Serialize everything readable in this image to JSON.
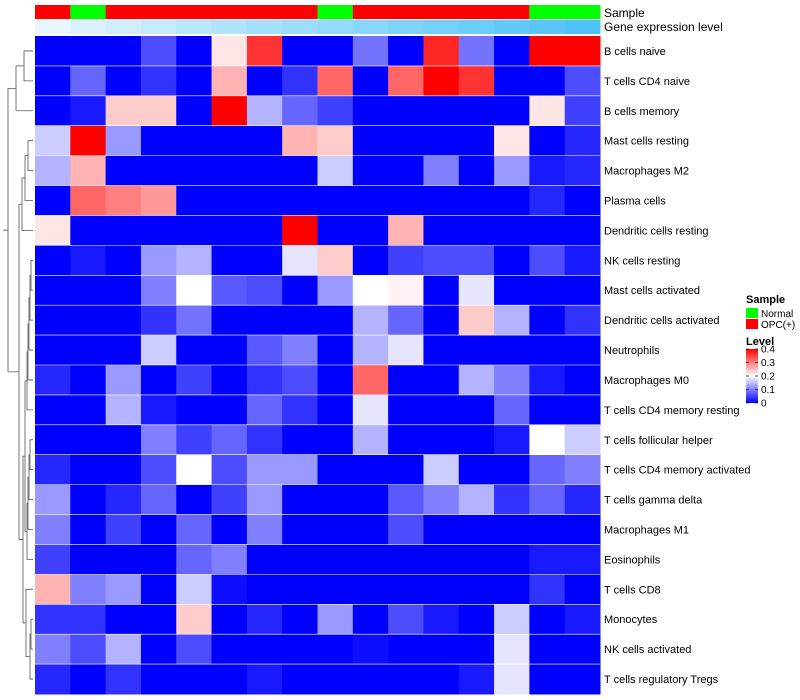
{
  "chart_data": {
    "type": "heatmap",
    "annotation_labels": {
      "sample": "Sample",
      "gene_expression": "Gene expression level"
    },
    "sample_groups": [
      "OPC(+)",
      "Normal",
      "OPC(+)",
      "OPC(+)",
      "OPC(+)",
      "OPC(+)",
      "OPC(+)",
      "OPC(+)",
      "Normal",
      "OPC(+)",
      "OPC(+)",
      "OPC(+)",
      "OPC(+)",
      "OPC(+)",
      "Normal",
      "Normal"
    ],
    "gene_expression_level": [
      0.05,
      0.12,
      0.18,
      0.24,
      0.3,
      0.35,
      0.4,
      0.45,
      0.5,
      0.55,
      0.6,
      0.65,
      0.7,
      0.75,
      0.8,
      0.85
    ],
    "rows": [
      "B cells naive",
      "T cells CD4 naive",
      "B cells memory",
      "Mast cells resting",
      "Macrophages M2",
      "Plasma cells",
      "Dendritic cells resting",
      "NK cells resting",
      "Mast cells activated",
      "Dendritic cells activated",
      "Neutrophils",
      "Macrophages M0",
      "T cells CD4 memory resting",
      "T cells follicular helper",
      "T cells CD4 memory activated",
      "T cells gamma delta",
      "Macrophages M1",
      "Eosinophils",
      "T cells CD8",
      "Monocytes",
      "NK cells activated",
      "T cells regulatory  Tregs"
    ],
    "values": [
      [
        0.0,
        0.0,
        0.0,
        0.06,
        0.0,
        0.22,
        0.36,
        0.0,
        0.0,
        0.09,
        0.0,
        0.37,
        0.09,
        0.0,
        0.4,
        0.4
      ],
      [
        0.0,
        0.08,
        0.0,
        0.04,
        0.0,
        0.26,
        0.0,
        0.04,
        0.32,
        0.0,
        0.32,
        0.4,
        0.36,
        0.0,
        0.0,
        0.06
      ],
      [
        0.0,
        0.02,
        0.24,
        0.24,
        0.0,
        0.4,
        0.14,
        0.08,
        0.05,
        0.0,
        0.0,
        0.0,
        0.0,
        0.0,
        0.22,
        0.05
      ],
      [
        0.16,
        0.4,
        0.12,
        0.0,
        0.0,
        0.0,
        0.0,
        0.26,
        0.24,
        0.0,
        0.0,
        0.0,
        0.0,
        0.22,
        0.0,
        0.03
      ],
      [
        0.14,
        0.26,
        0.0,
        0.0,
        0.0,
        0.0,
        0.0,
        0.0,
        0.16,
        0.0,
        0.0,
        0.1,
        0.0,
        0.12,
        0.02,
        0.03
      ],
      [
        0.0,
        0.32,
        0.3,
        0.28,
        0.0,
        0.0,
        0.0,
        0.0,
        0.0,
        0.0,
        0.0,
        0.0,
        0.0,
        0.0,
        0.03,
        0.0
      ],
      [
        0.22,
        0.0,
        0.0,
        0.0,
        0.0,
        0.0,
        0.0,
        0.4,
        0.0,
        0.0,
        0.26,
        0.0,
        0.0,
        0.0,
        0.0,
        0.0
      ],
      [
        0.0,
        0.02,
        0.0,
        0.12,
        0.14,
        0.0,
        0.0,
        0.18,
        0.24,
        0.0,
        0.05,
        0.06,
        0.06,
        0.0,
        0.06,
        0.02
      ],
      [
        0.0,
        0.0,
        0.0,
        0.1,
        0.2,
        0.07,
        0.06,
        0.0,
        0.12,
        0.2,
        0.21,
        0.0,
        0.18,
        0.0,
        0.0,
        0.0
      ],
      [
        0.0,
        0.0,
        0.0,
        0.04,
        0.09,
        0.0,
        0.0,
        0.0,
        0.0,
        0.14,
        0.08,
        0.0,
        0.24,
        0.14,
        0.0,
        0.04
      ],
      [
        0.0,
        0.0,
        0.0,
        0.16,
        0.0,
        0.0,
        0.07,
        0.1,
        0.0,
        0.14,
        0.18,
        0.0,
        0.0,
        0.0,
        0.0,
        0.0
      ],
      [
        0.03,
        0.0,
        0.12,
        0.0,
        0.05,
        0.0,
        0.04,
        0.06,
        0.0,
        0.32,
        0.0,
        0.0,
        0.14,
        0.1,
        0.02,
        0.0
      ],
      [
        0.0,
        0.0,
        0.14,
        0.02,
        0.0,
        0.0,
        0.08,
        0.04,
        0.0,
        0.18,
        0.0,
        0.0,
        0.0,
        0.08,
        0.0,
        0.0
      ],
      [
        0.0,
        0.0,
        0.0,
        0.1,
        0.05,
        0.08,
        0.04,
        0.0,
        0.0,
        0.14,
        0.0,
        0.0,
        0.0,
        0.02,
        0.2,
        0.16
      ],
      [
        0.03,
        0.0,
        0.0,
        0.06,
        0.2,
        0.06,
        0.12,
        0.12,
        0.0,
        0.0,
        0.0,
        0.16,
        0.0,
        0.0,
        0.08,
        0.1
      ],
      [
        0.12,
        0.0,
        0.03,
        0.08,
        0.0,
        0.05,
        0.12,
        0.0,
        0.0,
        0.0,
        0.07,
        0.1,
        0.14,
        0.04,
        0.08,
        0.03
      ],
      [
        0.1,
        0.0,
        0.05,
        0.0,
        0.08,
        0.0,
        0.1,
        0.0,
        0.0,
        0.0,
        0.06,
        0.0,
        0.0,
        0.0,
        0.0,
        0.0
      ],
      [
        0.05,
        0.0,
        0.0,
        0.0,
        0.08,
        0.1,
        0.0,
        0.0,
        0.0,
        0.0,
        0.0,
        0.0,
        0.0,
        0.0,
        0.02,
        0.02
      ],
      [
        0.26,
        0.1,
        0.12,
        0.0,
        0.16,
        0.01,
        0.0,
        0.0,
        0.0,
        0.0,
        0.0,
        0.0,
        0.0,
        0.0,
        0.04,
        0.0
      ],
      [
        0.04,
        0.04,
        0.0,
        0.0,
        0.24,
        0.0,
        0.03,
        0.0,
        0.12,
        0.0,
        0.06,
        0.02,
        0.0,
        0.16,
        0.0,
        0.02
      ],
      [
        0.1,
        0.06,
        0.14,
        0.0,
        0.06,
        0.0,
        0.0,
        0.0,
        0.0,
        0.01,
        0.0,
        0.0,
        0.0,
        0.18,
        0.0,
        0.0
      ],
      [
        0.03,
        0.0,
        0.04,
        0.0,
        0.0,
        0.0,
        0.02,
        0.0,
        0.0,
        0.0,
        0.0,
        0.0,
        0.02,
        0.18,
        0.0,
        0.0
      ]
    ],
    "color_scale": {
      "min_color": "#0000ff",
      "mid_color": "#ffffff",
      "max_color": "#ff0000",
      "min": 0,
      "mid": 0.2,
      "max": 0.4
    },
    "sample_colors": {
      "Normal": "#00ff00",
      "OPC(+)": "#ff0000"
    },
    "gene_expression_colors": {
      "low": "#e8f6fd",
      "high": "#4fc3f7"
    },
    "legend": {
      "sample_title": "Sample",
      "sample_entries": [
        "Normal",
        "OPC(+)"
      ],
      "level_title": "Level",
      "level_ticks": [
        "0.4",
        "0.3",
        "0.2",
        "0.1",
        "0"
      ],
      "level_tick_values": [
        0.4,
        0.3,
        0.2,
        0.1,
        0
      ]
    },
    "dendrogram": {
      "shown": true,
      "side": "left"
    }
  }
}
